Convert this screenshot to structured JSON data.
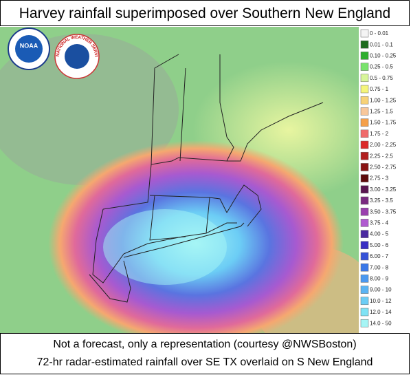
{
  "header": {
    "title": "Harvey rainfall superimposed over Southern New England"
  },
  "logos": {
    "noaa": "NOAA",
    "nws": "NATIONAL WEATHER SERVICE"
  },
  "legend": {
    "items": [
      {
        "label": "0 - 0.01",
        "color": "#f4f4f4"
      },
      {
        "label": "0.01 - 0.1",
        "color": "#1f6b1f"
      },
      {
        "label": "0.10 - 0.25",
        "color": "#2fae2f"
      },
      {
        "label": "0.25 - 0.5",
        "color": "#79e36c"
      },
      {
        "label": "0.5 - 0.75",
        "color": "#d8f59a"
      },
      {
        "label": "0.75 - 1",
        "color": "#f5f57a"
      },
      {
        "label": "1.00 - 1.25",
        "color": "#f7d277"
      },
      {
        "label": "1.25 - 1.5",
        "color": "#f8c79a"
      },
      {
        "label": "1.50 - 1.75",
        "color": "#f5a04a"
      },
      {
        "label": "1.75 - 2",
        "color": "#f06a6a"
      },
      {
        "label": "2.00 - 2.25",
        "color": "#dc2a2a"
      },
      {
        "label": "2.25 - 2.5",
        "color": "#b21f1f"
      },
      {
        "label": "2.50 - 2.75",
        "color": "#8a1414"
      },
      {
        "label": "2.75 - 3",
        "color": "#5e0a0a"
      },
      {
        "label": "3.00 - 3.25",
        "color": "#5a1650"
      },
      {
        "label": "3.25 - 3.5",
        "color": "#7a2a80"
      },
      {
        "label": "3.50 - 3.75",
        "color": "#9a3fae"
      },
      {
        "label": "3.75 - 4",
        "color": "#b05ad0"
      },
      {
        "label": "4.00 - 5",
        "color": "#4b2aa0"
      },
      {
        "label": "5.00 - 6",
        "color": "#3a2ec4"
      },
      {
        "label": "6.00 - 7",
        "color": "#3552d8"
      },
      {
        "label": "7.00 - 8",
        "color": "#3a78e8"
      },
      {
        "label": "8.00 - 9",
        "color": "#4a98f0"
      },
      {
        "label": "9.00 - 10",
        "color": "#5ab4f4"
      },
      {
        "label": "10.0 - 12",
        "color": "#6ccdf5"
      },
      {
        "label": "12.0 - 14",
        "color": "#7fe3f5"
      },
      {
        "label": "14.0 - 50",
        "color": "#a6f5f5"
      }
    ]
  },
  "footer": {
    "line1": "Not a forecast, only a representation  (courtesy @NWSBoston)",
    "line2": "72-hr radar-estimated rainfall over SE TX overlaid on S New England"
  }
}
